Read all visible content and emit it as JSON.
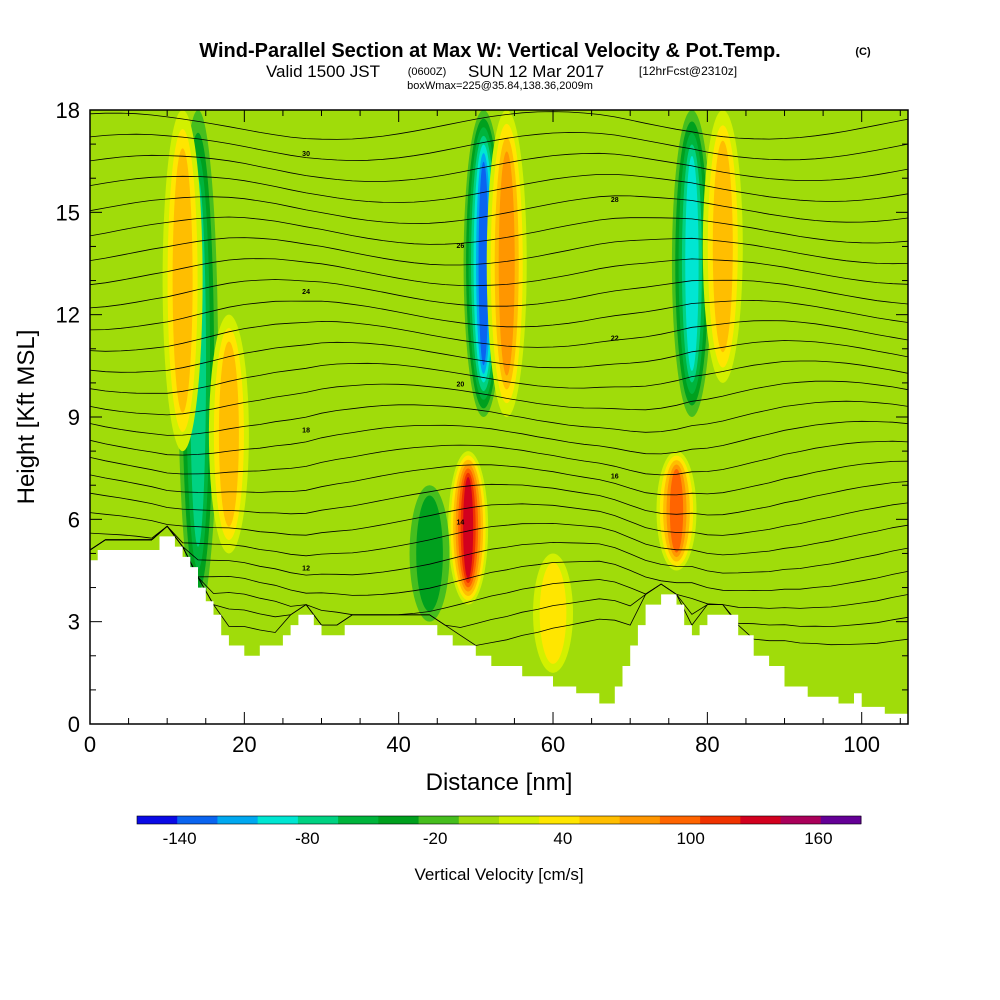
{
  "title": "Wind-Parallel Section at Max W: Vertical Velocity & Pot.Temp.",
  "title_mark": "(C)",
  "subtitle_main": "Valid 1500 JST",
  "subtitle_utc": "(0600Z)",
  "subtitle_date": "SUN 12 Mar 2017",
  "subtitle_fcst": "[12hrFcst@2310z]",
  "subtitle_box": "boxWmax=225@35.84,138.36,2009m",
  "chart_data": {
    "type": "heatmap",
    "xlabel": "Distance [nm]",
    "ylabel": "Height [Kft MSL]",
    "xlim": [
      0,
      106
    ],
    "ylim": [
      0,
      18
    ],
    "x_ticks": [
      "0",
      "20",
      "40",
      "60",
      "80",
      "100"
    ],
    "y_ticks": [
      "0",
      "3",
      "6",
      "9",
      "12",
      "15",
      "18"
    ],
    "colorbar": {
      "title": "Vertical Velocity [cm/s]",
      "tick_labels": [
        "-140",
        "-80",
        "-20",
        "40",
        "100",
        "160"
      ],
      "levels": [
        -160,
        -140,
        -120,
        -100,
        -80,
        -60,
        -40,
        -20,
        0,
        20,
        40,
        60,
        80,
        100,
        120,
        140,
        160,
        180
      ],
      "colors": [
        "#0a0ae6",
        "#0a64f0",
        "#00a8f0",
        "#00e6d2",
        "#00d282",
        "#00b43c",
        "#00a01e",
        "#46be1e",
        "#a0dc0a",
        "#d2f000",
        "#ffe600",
        "#ffbe00",
        "#ff9600",
        "#ff6400",
        "#f03200",
        "#d2001e",
        "#aa005a",
        "#640096"
      ]
    },
    "terrain_nm_kft": [
      [
        0,
        4.8
      ],
      [
        1,
        4.8
      ],
      [
        1,
        5.1
      ],
      [
        9,
        5.1
      ],
      [
        9,
        5.5
      ],
      [
        11,
        5.5
      ],
      [
        11,
        5.2
      ],
      [
        12,
        5.2
      ],
      [
        12,
        4.9
      ],
      [
        13,
        4.9
      ],
      [
        13,
        4.6
      ],
      [
        14,
        4.6
      ],
      [
        14,
        4.0
      ],
      [
        15,
        4.0
      ],
      [
        15,
        3.6
      ],
      [
        16,
        3.6
      ],
      [
        16,
        3.2
      ],
      [
        17,
        3.2
      ],
      [
        17,
        2.6
      ],
      [
        18,
        2.6
      ],
      [
        18,
        2.3
      ],
      [
        20,
        2.3
      ],
      [
        20,
        2.0
      ],
      [
        22,
        2.0
      ],
      [
        22,
        2.3
      ],
      [
        25,
        2.3
      ],
      [
        25,
        2.6
      ],
      [
        26,
        2.6
      ],
      [
        26,
        2.9
      ],
      [
        27,
        2.9
      ],
      [
        27,
        3.2
      ],
      [
        29,
        3.2
      ],
      [
        29,
        2.9
      ],
      [
        30,
        2.9
      ],
      [
        30,
        2.6
      ],
      [
        33,
        2.6
      ],
      [
        33,
        2.9
      ],
      [
        45,
        2.9
      ],
      [
        45,
        2.6
      ],
      [
        47,
        2.6
      ],
      [
        47,
        2.3
      ],
      [
        50,
        2.3
      ],
      [
        50,
        2.0
      ],
      [
        52,
        2.0
      ],
      [
        52,
        1.7
      ],
      [
        56,
        1.7
      ],
      [
        56,
        1.4
      ],
      [
        60,
        1.4
      ],
      [
        60,
        1.1
      ],
      [
        63,
        1.1
      ],
      [
        63,
        0.9
      ],
      [
        66,
        0.9
      ],
      [
        66,
        0.6
      ],
      [
        68,
        0.6
      ],
      [
        68,
        1.1
      ],
      [
        69,
        1.1
      ],
      [
        69,
        1.7
      ],
      [
        70,
        1.7
      ],
      [
        70,
        2.3
      ],
      [
        71,
        2.3
      ],
      [
        71,
        2.9
      ],
      [
        72,
        2.9
      ],
      [
        72,
        3.5
      ],
      [
        74,
        3.5
      ],
      [
        74,
        3.8
      ],
      [
        76,
        3.8
      ],
      [
        76,
        3.5
      ],
      [
        77,
        3.5
      ],
      [
        77,
        2.9
      ],
      [
        78,
        2.9
      ],
      [
        78,
        2.6
      ],
      [
        79,
        2.6
      ],
      [
        79,
        2.9
      ],
      [
        80,
        2.9
      ],
      [
        80,
        3.2
      ],
      [
        84,
        3.2
      ],
      [
        84,
        2.6
      ],
      [
        86,
        2.6
      ],
      [
        86,
        2.0
      ],
      [
        88,
        2.0
      ],
      [
        88,
        1.7
      ],
      [
        90,
        1.7
      ],
      [
        90,
        1.1
      ],
      [
        93,
        1.1
      ],
      [
        93,
        0.8
      ],
      [
        97,
        0.8
      ],
      [
        97,
        0.6
      ],
      [
        99,
        0.6
      ],
      [
        99,
        0.9
      ],
      [
        100,
        0.9
      ],
      [
        100,
        0.5
      ],
      [
        103,
        0.5
      ],
      [
        103,
        0.3
      ],
      [
        106,
        0.3
      ]
    ],
    "w_features": [
      {
        "x": 14,
        "z0": 3.2,
        "z1": 18,
        "w": -80
      },
      {
        "x": 18,
        "z0": 5.0,
        "z1": 12,
        "w": 60
      },
      {
        "x": 12,
        "z0": 8.0,
        "z1": 18,
        "w": 60
      },
      {
        "x": 49,
        "z0": 3.5,
        "z1": 8,
        "w": 140
      },
      {
        "x": 51,
        "z0": 9.0,
        "z1": 18,
        "w": -140
      },
      {
        "x": 54,
        "z0": 9.0,
        "z1": 18,
        "w": 80
      },
      {
        "x": 76,
        "z0": 4.5,
        "z1": 8,
        "w": 110
      },
      {
        "x": 78,
        "z0": 9.0,
        "z1": 18,
        "w": -100
      },
      {
        "x": 82,
        "z0": 10.0,
        "z1": 18,
        "w": 60
      },
      {
        "x": 44,
        "z0": 3.0,
        "z1": 7,
        "w": -40
      },
      {
        "x": 60,
        "z0": 1.5,
        "z1": 5,
        "w": 50
      }
    ],
    "theta_contour_labels": [
      "12",
      "14",
      "16",
      "18",
      "20",
      "22",
      "24",
      "26",
      "28",
      "30"
    ]
  },
  "icons": {
    "colorbar": "vertical-velocity-colorbar"
  }
}
